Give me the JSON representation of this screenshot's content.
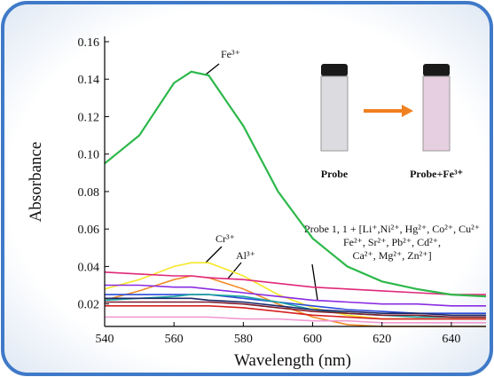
{
  "chart_data": {
    "type": "line",
    "x_label": "Wavelength (nm)",
    "y_label": "Absorbance",
    "xlim": [
      540,
      650
    ],
    "ylim": [
      0.008,
      0.16
    ],
    "xticks": [
      540,
      560,
      580,
      600,
      620,
      640
    ],
    "yticks": [
      0.02,
      0.04,
      0.06,
      0.08,
      {
        "value": 0.1,
        "label": "0.10"
      },
      0.12,
      0.14,
      0.16
    ],
    "x": [
      540,
      550,
      560,
      565,
      570,
      580,
      590,
      600,
      610,
      620,
      630,
      640,
      650
    ],
    "series": [
      {
        "name": "Fe³⁺",
        "color": "#2db84a",
        "values": [
          0.095,
          0.11,
          0.138,
          0.144,
          0.142,
          0.115,
          0.08,
          0.055,
          0.04,
          0.032,
          0.028,
          0.025,
          0.024
        ]
      },
      {
        "name": "Cr³⁺",
        "color": "#f5e82a",
        "values": [
          0.028,
          0.033,
          0.04,
          0.042,
          0.042,
          0.035,
          0.025,
          0.018,
          0.014,
          0.012,
          0.012,
          0.012,
          0.012
        ]
      },
      {
        "name": "Al³⁺",
        "color": "#f28c28",
        "values": [
          0.022,
          0.027,
          0.033,
          0.035,
          0.034,
          0.028,
          0.02,
          0.013,
          0.009,
          0.008,
          0.008,
          0.008,
          0.008
        ]
      },
      {
        "color": "#e0287a",
        "values": [
          0.037,
          0.036,
          0.035,
          0.035,
          0.034,
          0.033,
          0.031,
          0.029,
          0.028,
          0.027,
          0.026,
          0.025,
          0.025
        ]
      },
      {
        "color": "#8a2be2",
        "values": [
          0.03,
          0.03,
          0.029,
          0.029,
          0.028,
          0.026,
          0.024,
          0.022,
          0.021,
          0.02,
          0.02,
          0.019,
          0.019
        ]
      },
      {
        "color": "#2a4bd8",
        "values": [
          0.025,
          0.025,
          0.025,
          0.025,
          0.025,
          0.023,
          0.021,
          0.019,
          0.017,
          0.016,
          0.015,
          0.015,
          0.015
        ]
      },
      {
        "color": "#1aa6a0",
        "values": [
          0.022,
          0.023,
          0.024,
          0.025,
          0.025,
          0.024,
          0.021,
          0.017,
          0.015,
          0.014,
          0.013,
          0.013,
          0.013
        ]
      },
      {
        "color": "#1b2a6b",
        "values": [
          0.023,
          0.023,
          0.023,
          0.023,
          0.022,
          0.021,
          0.019,
          0.017,
          0.016,
          0.015,
          0.015,
          0.014,
          0.014
        ]
      },
      {
        "color": "#d62020",
        "values": [
          0.019,
          0.019,
          0.019,
          0.019,
          0.019,
          0.018,
          0.016,
          0.014,
          0.013,
          0.012,
          0.012,
          0.012,
          0.012
        ]
      },
      {
        "color": "#7b1c2c",
        "values": [
          0.021,
          0.021,
          0.021,
          0.021,
          0.021,
          0.02,
          0.018,
          0.016,
          0.015,
          0.014,
          0.014,
          0.013,
          0.013
        ]
      },
      {
        "color": "#f09ad0",
        "values": [
          0.013,
          0.013,
          0.013,
          0.013,
          0.013,
          0.012,
          0.012,
          0.011,
          0.011,
          0.01,
          0.01,
          0.01,
          0.01
        ]
      }
    ],
    "probe_note": [
      "Probe 1, 1 + [Li⁺,Ni²⁺, Hg²⁺, Co²⁺, Cu²⁺",
      "Fe²⁺, Sr²⁺, Pb²⁺, Cd²⁺,",
      "Ca²⁺, Mg²⁺, Zn²⁺]"
    ],
    "inset_labels": [
      "Probe",
      "Probe+Fe³⁺"
    ]
  }
}
